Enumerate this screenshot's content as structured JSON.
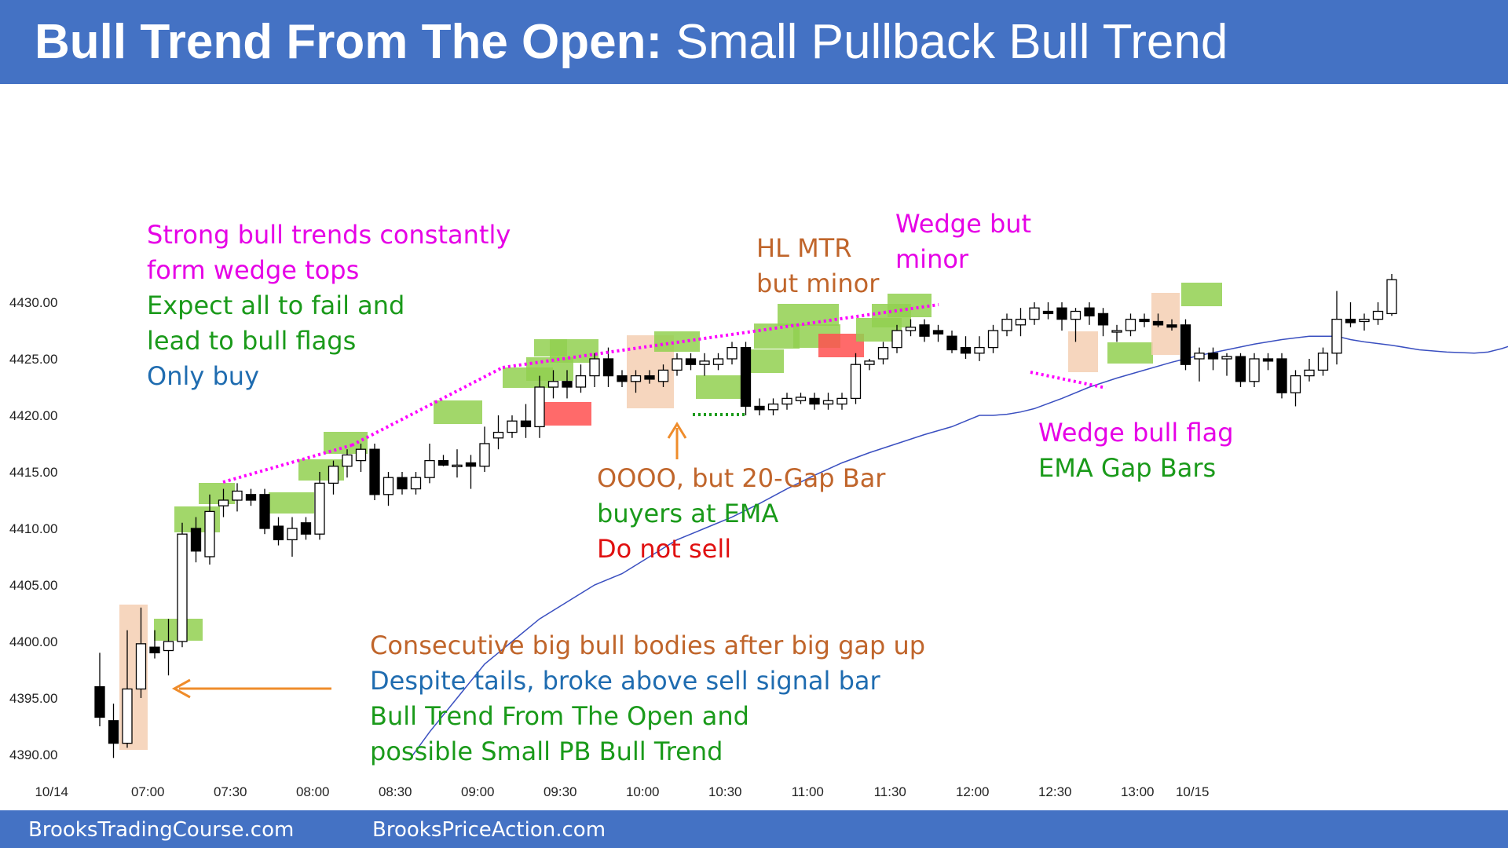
{
  "header": {
    "title_bold": "Bull Trend From The Open:",
    "title_rest": " Small Pullback Bull Trend",
    "bg_color": "#4472c4"
  },
  "footer": {
    "left": "BrooksTradingCourse.com",
    "right": "BrooksPriceAction.com"
  },
  "chart_data": {
    "type": "candlestick",
    "title": "Bull Trend From The Open: Small Pullback Bull Trend",
    "ylim": [
      4388,
      4438
    ],
    "y_ticks": [
      "4390.00",
      "4395.00",
      "4400.00",
      "4405.00",
      "4410.00",
      "4415.00",
      "4420.00",
      "4425.00",
      "4430.00"
    ],
    "y_tick_values": [
      4390,
      4395,
      4400,
      4405,
      4410,
      4415,
      4420,
      4425,
      4430
    ],
    "x_ticks": [
      {
        "label": "10/14",
        "bar": -3.5
      },
      {
        "label": "07:00",
        "bar": 3.5
      },
      {
        "label": "07:30",
        "bar": 9.5
      },
      {
        "label": "08:00",
        "bar": 15.5
      },
      {
        "label": "08:30",
        "bar": 21.5
      },
      {
        "label": "09:00",
        "bar": 27.5
      },
      {
        "label": "09:30",
        "bar": 33.5
      },
      {
        "label": "10:00",
        "bar": 39.5
      },
      {
        "label": "10:30",
        "bar": 45.5
      },
      {
        "label": "11:00",
        "bar": 51.5
      },
      {
        "label": "11:30",
        "bar": 57.5
      },
      {
        "label": "12:00",
        "bar": 63.5
      },
      {
        "label": "12:30",
        "bar": 69.5
      },
      {
        "label": "13:00",
        "bar": 75.5
      },
      {
        "label": "10/15",
        "bar": 79.5
      }
    ],
    "bars": [
      {
        "o": 4396,
        "h": 4399,
        "l": 4392.5,
        "c": 4393.3
      },
      {
        "o": 4393,
        "h": 4394.5,
        "l": 4389.7,
        "c": 4391
      },
      {
        "o": 4391,
        "h": 4401,
        "l": 4390.6,
        "c": 4395.8
      },
      {
        "o": 4395.8,
        "h": 4403,
        "l": 4395,
        "c": 4399.8
      },
      {
        "o": 4399.5,
        "h": 4401,
        "l": 4398.5,
        "c": 4399
      },
      {
        "o": 4399.2,
        "h": 4402,
        "l": 4397,
        "c": 4400
      },
      {
        "o": 4400,
        "h": 4410.5,
        "l": 4399.5,
        "c": 4409.5
      },
      {
        "o": 4410,
        "h": 4411,
        "l": 4407,
        "c": 4408
      },
      {
        "o": 4407.5,
        "h": 4413,
        "l": 4406.8,
        "c": 4411.5
      },
      {
        "o": 4412,
        "h": 4413.5,
        "l": 4411,
        "c": 4412.5
      },
      {
        "o": 4412.5,
        "h": 4414,
        "l": 4411.5,
        "c": 4413.3
      },
      {
        "o": 4413,
        "h": 4413.5,
        "l": 4412,
        "c": 4412.5
      },
      {
        "o": 4413,
        "h": 4413.5,
        "l": 4409.5,
        "c": 4410
      },
      {
        "o": 4410.2,
        "h": 4411,
        "l": 4408.5,
        "c": 4409
      },
      {
        "o": 4409,
        "h": 4411,
        "l": 4407.5,
        "c": 4410
      },
      {
        "o": 4410.5,
        "h": 4411,
        "l": 4409,
        "c": 4409.5
      },
      {
        "o": 4409.5,
        "h": 4415,
        "l": 4409,
        "c": 4414
      },
      {
        "o": 4414,
        "h": 4416,
        "l": 4413,
        "c": 4415.5
      },
      {
        "o": 4415.5,
        "h": 4417,
        "l": 4414.5,
        "c": 4416.5
      },
      {
        "o": 4416,
        "h": 4417.5,
        "l": 4415,
        "c": 4417
      },
      {
        "o": 4417,
        "h": 4417.5,
        "l": 4412.5,
        "c": 4413
      },
      {
        "o": 4413,
        "h": 4415,
        "l": 4412,
        "c": 4414.5
      },
      {
        "o": 4414.5,
        "h": 4415,
        "l": 4413,
        "c": 4413.5
      },
      {
        "o": 4413.5,
        "h": 4415,
        "l": 4413,
        "c": 4414.5
      },
      {
        "o": 4414.5,
        "h": 4417.5,
        "l": 4414,
        "c": 4416
      },
      {
        "o": 4416,
        "h": 4416.5,
        "l": 4415.5,
        "c": 4415.6
      },
      {
        "o": 4415.5,
        "h": 4417,
        "l": 4414.5,
        "c": 4415.6
      },
      {
        "o": 4415.8,
        "h": 4416.5,
        "l": 4413.5,
        "c": 4415.5
      },
      {
        "o": 4415.5,
        "h": 4419,
        "l": 4415,
        "c": 4417.5
      },
      {
        "o": 4418,
        "h": 4420,
        "l": 4417,
        "c": 4418.5
      },
      {
        "o": 4418.5,
        "h": 4420,
        "l": 4418,
        "c": 4419.5
      },
      {
        "o": 4419.5,
        "h": 4421,
        "l": 4418,
        "c": 4419
      },
      {
        "o": 4419,
        "h": 4423.5,
        "l": 4418,
        "c": 4422.5
      },
      {
        "o": 4422.5,
        "h": 4424,
        "l": 4421.5,
        "c": 4423
      },
      {
        "o": 4423,
        "h": 4424,
        "l": 4421.5,
        "c": 4422.5
      },
      {
        "o": 4422.5,
        "h": 4424.5,
        "l": 4422,
        "c": 4423.5
      },
      {
        "o": 4423.5,
        "h": 4425.5,
        "l": 4422.5,
        "c": 4425
      },
      {
        "o": 4425,
        "h": 4426,
        "l": 4422.5,
        "c": 4423.5
      },
      {
        "o": 4423.5,
        "h": 4424,
        "l": 4422.5,
        "c": 4423
      },
      {
        "o": 4423,
        "h": 4424,
        "l": 4422,
        "c": 4423.5
      },
      {
        "o": 4423.5,
        "h": 4424,
        "l": 4422.8,
        "c": 4423.2
      },
      {
        "o": 4423,
        "h": 4424.5,
        "l": 4422.5,
        "c": 4424
      },
      {
        "o": 4424,
        "h": 4425.5,
        "l": 4423.5,
        "c": 4425
      },
      {
        "o": 4425,
        "h": 4425.5,
        "l": 4424,
        "c": 4424.5
      },
      {
        "o": 4424.5,
        "h": 4425.5,
        "l": 4423.5,
        "c": 4424.8
      },
      {
        "o": 4424.5,
        "h": 4425.5,
        "l": 4424,
        "c": 4425
      },
      {
        "o": 4425,
        "h": 4426.5,
        "l": 4424.5,
        "c": 4426
      },
      {
        "o": 4426,
        "h": 4426.5,
        "l": 4420,
        "c": 4420.8
      },
      {
        "o": 4420.8,
        "h": 4421.5,
        "l": 4420,
        "c": 4420.5
      },
      {
        "o": 4420.5,
        "h": 4421.5,
        "l": 4420,
        "c": 4421
      },
      {
        "o": 4421,
        "h": 4422,
        "l": 4420.5,
        "c": 4421.5
      },
      {
        "o": 4421.3,
        "h": 4422,
        "l": 4421,
        "c": 4421.6
      },
      {
        "o": 4421.5,
        "h": 4422,
        "l": 4420.5,
        "c": 4421
      },
      {
        "o": 4421,
        "h": 4422,
        "l": 4420.5,
        "c": 4421.3
      },
      {
        "o": 4421,
        "h": 4422,
        "l": 4420.5,
        "c": 4421.5
      },
      {
        "o": 4421.5,
        "h": 4425.5,
        "l": 4421,
        "c": 4424.5
      },
      {
        "o": 4424.5,
        "h": 4425,
        "l": 4424,
        "c": 4424.8
      },
      {
        "o": 4425,
        "h": 4426.5,
        "l": 4424.5,
        "c": 4426
      },
      {
        "o": 4426,
        "h": 4428,
        "l": 4425.5,
        "c": 4427.5
      },
      {
        "o": 4427.5,
        "h": 4428.5,
        "l": 4427,
        "c": 4427.8
      },
      {
        "o": 4428,
        "h": 4428.5,
        "l": 4426.5,
        "c": 4427
      },
      {
        "o": 4427.5,
        "h": 4428,
        "l": 4426.5,
        "c": 4427.2
      },
      {
        "o": 4427,
        "h": 4427.5,
        "l": 4425.5,
        "c": 4425.8
      },
      {
        "o": 4426,
        "h": 4427,
        "l": 4425,
        "c": 4425.5
      },
      {
        "o": 4425.5,
        "h": 4427,
        "l": 4424.8,
        "c": 4426
      },
      {
        "o": 4426,
        "h": 4428,
        "l": 4425.5,
        "c": 4427.5
      },
      {
        "o": 4427.5,
        "h": 4429,
        "l": 4427,
        "c": 4428.5
      },
      {
        "o": 4428,
        "h": 4429.5,
        "l": 4427,
        "c": 4428.5
      },
      {
        "o": 4428.5,
        "h": 4430,
        "l": 4428,
        "c": 4429.5
      },
      {
        "o": 4429.2,
        "h": 4430,
        "l": 4428.5,
        "c": 4429
      },
      {
        "o": 4429.5,
        "h": 4430,
        "l": 4427.5,
        "c": 4428.5
      },
      {
        "o": 4428.5,
        "h": 4429.5,
        "l": 4426.5,
        "c": 4429.2
      },
      {
        "o": 4429.5,
        "h": 4430,
        "l": 4428,
        "c": 4428.8
      },
      {
        "o": 4429,
        "h": 4429.5,
        "l": 4427,
        "c": 4428
      },
      {
        "o": 4427.5,
        "h": 4428,
        "l": 4426.5,
        "c": 4427.5
      },
      {
        "o": 4427.5,
        "h": 4429,
        "l": 4427,
        "c": 4428.5
      },
      {
        "o": 4428.5,
        "h": 4429,
        "l": 4427.8,
        "c": 4428.3
      },
      {
        "o": 4428.3,
        "h": 4429,
        "l": 4427.8,
        "c": 4428
      },
      {
        "o": 4428,
        "h": 4428.5,
        "l": 4427.5,
        "c": 4427.8
      },
      {
        "o": 4428,
        "h": 4428.5,
        "l": 4424,
        "c": 4424.5
      },
      {
        "o": 4425,
        "h": 4426,
        "l": 4423,
        "c": 4425.5
      },
      {
        "o": 4425.5,
        "h": 4426,
        "l": 4424,
        "c": 4425
      },
      {
        "o": 4425,
        "h": 4425.5,
        "l": 4423.5,
        "c": 4425.2
      },
      {
        "o": 4425.2,
        "h": 4425.5,
        "l": 4422.5,
        "c": 4423
      },
      {
        "o": 4423,
        "h": 4425.5,
        "l": 4422.5,
        "c": 4425
      },
      {
        "o": 4425,
        "h": 4425.5,
        "l": 4424,
        "c": 4424.8
      },
      {
        "o": 4425,
        "h": 4425.5,
        "l": 4421.5,
        "c": 4422
      },
      {
        "o": 4422,
        "h": 4424,
        "l": 4420.8,
        "c": 4423.5
      },
      {
        "o": 4423.5,
        "h": 4425,
        "l": 4423,
        "c": 4424
      },
      {
        "o": 4424,
        "h": 4426,
        "l": 4423.5,
        "c": 4425.5
      },
      {
        "o": 4425.5,
        "h": 4431,
        "l": 4424.5,
        "c": 4428.5
      },
      {
        "o": 4428.5,
        "h": 4430,
        "l": 4427.8,
        "c": 4428.2
      },
      {
        "o": 4428.3,
        "h": 4429,
        "l": 4427.5,
        "c": 4428.5
      },
      {
        "o": 4428.5,
        "h": 4430,
        "l": 4428,
        "c": 4429.2
      },
      {
        "o": 4429,
        "h": 4432.5,
        "l": 4428.8,
        "c": 4432
      }
    ],
    "ema": [
      [
        22.5,
        4389.5
      ],
      [
        24,
        4392
      ],
      [
        26,
        4395
      ],
      [
        28,
        4398
      ],
      [
        30,
        4400
      ],
      [
        32,
        4402
      ],
      [
        34,
        4403.5
      ],
      [
        36,
        4405
      ],
      [
        38,
        4406
      ],
      [
        40,
        4407.5
      ],
      [
        42,
        4409
      ],
      [
        44,
        4410
      ],
      [
        46,
        4411
      ],
      [
        48,
        4412.2
      ],
      [
        50,
        4413.5
      ],
      [
        52,
        4414.7
      ],
      [
        54,
        4415.8
      ],
      [
        56,
        4416.7
      ],
      [
        58,
        4417.5
      ],
      [
        60,
        4418.3
      ],
      [
        62,
        4419
      ],
      [
        63,
        4419.5
      ],
      [
        64,
        4420
      ],
      [
        65,
        4420
      ],
      [
        66,
        4420.1
      ],
      [
        67,
        4420.3
      ],
      [
        68,
        4420.6
      ],
      [
        70,
        4421.5
      ],
      [
        72,
        4422.5
      ],
      [
        74,
        4423.3
      ],
      [
        76,
        4424
      ],
      [
        78,
        4424.7
      ],
      [
        80,
        4425.3
      ],
      [
        82,
        4425.8
      ],
      [
        84,
        4426.3
      ],
      [
        86,
        4426.7
      ],
      [
        88,
        4427
      ],
      [
        89,
        4427
      ],
      [
        90,
        4427
      ],
      [
        91,
        4426.7
      ],
      [
        92,
        4426.5
      ],
      [
        94,
        4426.2
      ],
      [
        96,
        4425.8
      ],
      [
        98,
        4425.6
      ],
      [
        100,
        4425.5
      ],
      [
        101,
        4425.6
      ],
      [
        102,
        4425.9
      ],
      [
        103,
        4426.3
      ],
      [
        104,
        4426.8
      ],
      [
        105,
        4427.3
      ]
    ],
    "colors": {
      "green_box": "#92d050",
      "red_box": "#ff5050",
      "tan_box": "#f4cfb3",
      "magenta": "#ff00ff",
      "orange_arrow": "#ef8c2b",
      "ema_line": "#3a4fc0"
    },
    "annotations": [
      {
        "text": "Strong bull trends constantly",
        "color": "#e600e6"
      },
      {
        "text": "form wedge tops",
        "color": "#e600e6"
      },
      {
        "text": "Expect all to fail and",
        "color": "#1a9a1a"
      },
      {
        "text": "lead to bull flags",
        "color": "#1a9a1a"
      },
      {
        "text": "Only buy",
        "color": "#1f6cb0"
      },
      {
        "text": "HL MTR",
        "color": "#c0652b"
      },
      {
        "text": "but minor",
        "color": "#c0652b"
      },
      {
        "text": "Wedge but",
        "color": "#e600e6"
      },
      {
        "text": "minor",
        "color": "#e600e6"
      },
      {
        "text": "OOOO, but 20-Gap Bar",
        "color": "#c0652b"
      },
      {
        "text": "buyers at EMA",
        "color": "#1a9a1a"
      },
      {
        "text": "Do not sell",
        "color": "#e01010"
      },
      {
        "text": "Wedge bull flag",
        "color": "#e600e6"
      },
      {
        "text": "EMA Gap Bars",
        "color": "#1a9a1a"
      },
      {
        "text": "Consecutive big bull bodies after big gap up",
        "color": "#c0652b"
      },
      {
        "text": "Despite tails, broke above sell signal bar",
        "color": "#1f6cb0"
      },
      {
        "text": "Bull Trend From The Open and",
        "color": "#1a9a1a"
      },
      {
        "text": "possible Small PB Bull Trend",
        "color": "#1a9a1a"
      }
    ]
  }
}
